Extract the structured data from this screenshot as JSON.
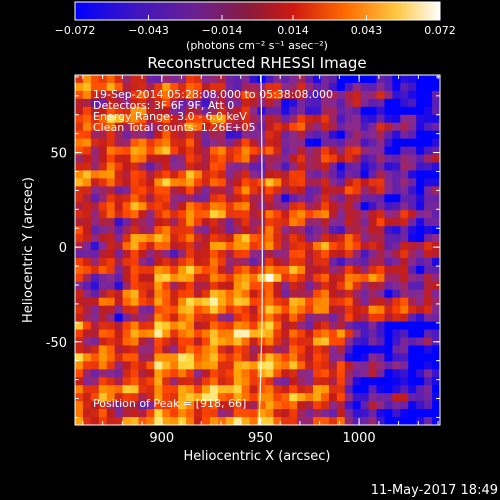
{
  "chart_data": {
    "type": "heatmap",
    "title": "Reconstructed RHESSI Image",
    "xlabel": "Heliocentric X (arcsec)",
    "ylabel": "Heliocentric Y (arcsec)",
    "xlim": [
      856,
      1041
    ],
    "ylim": [
      -94,
      91
    ],
    "x_ticks": [
      900,
      950,
      1000
    ],
    "y_ticks": [
      -50,
      0,
      50
    ],
    "info_lines": [
      "19-Sep-2014 05:28:08.000 to 05:38:08.000",
      "Detectors: 3F 6F 9F, Att 0",
      "Energy Range: 3.0 - 6.0 keV",
      "Clean    Total counts: 1.26E+05"
    ],
    "peak_label": "Position of Peak = [918, 66]",
    "footer_date": "11-May-2017 18:49",
    "colorbar": {
      "min": -0.072,
      "max": 0.072,
      "tick_values": [
        -0.072,
        -0.043,
        -0.014,
        0.014,
        0.043,
        0.072
      ],
      "tick_labels": [
        "−0.072",
        "−0.043",
        "−0.014",
        "0.014",
        "0.043",
        "0.072"
      ],
      "units_label": "(photons cm⁻² s⁻¹ asec⁻²)"
    },
    "grid": false,
    "colors": {
      "background": "#000000",
      "axes": "#ffffff",
      "colormap": [
        "#0000ff",
        "#5a1eb4",
        "#8a2a8c",
        "#c01c1c",
        "#ff4500",
        "#ff9900",
        "#ffdd44",
        "#ffffff"
      ]
    }
  }
}
